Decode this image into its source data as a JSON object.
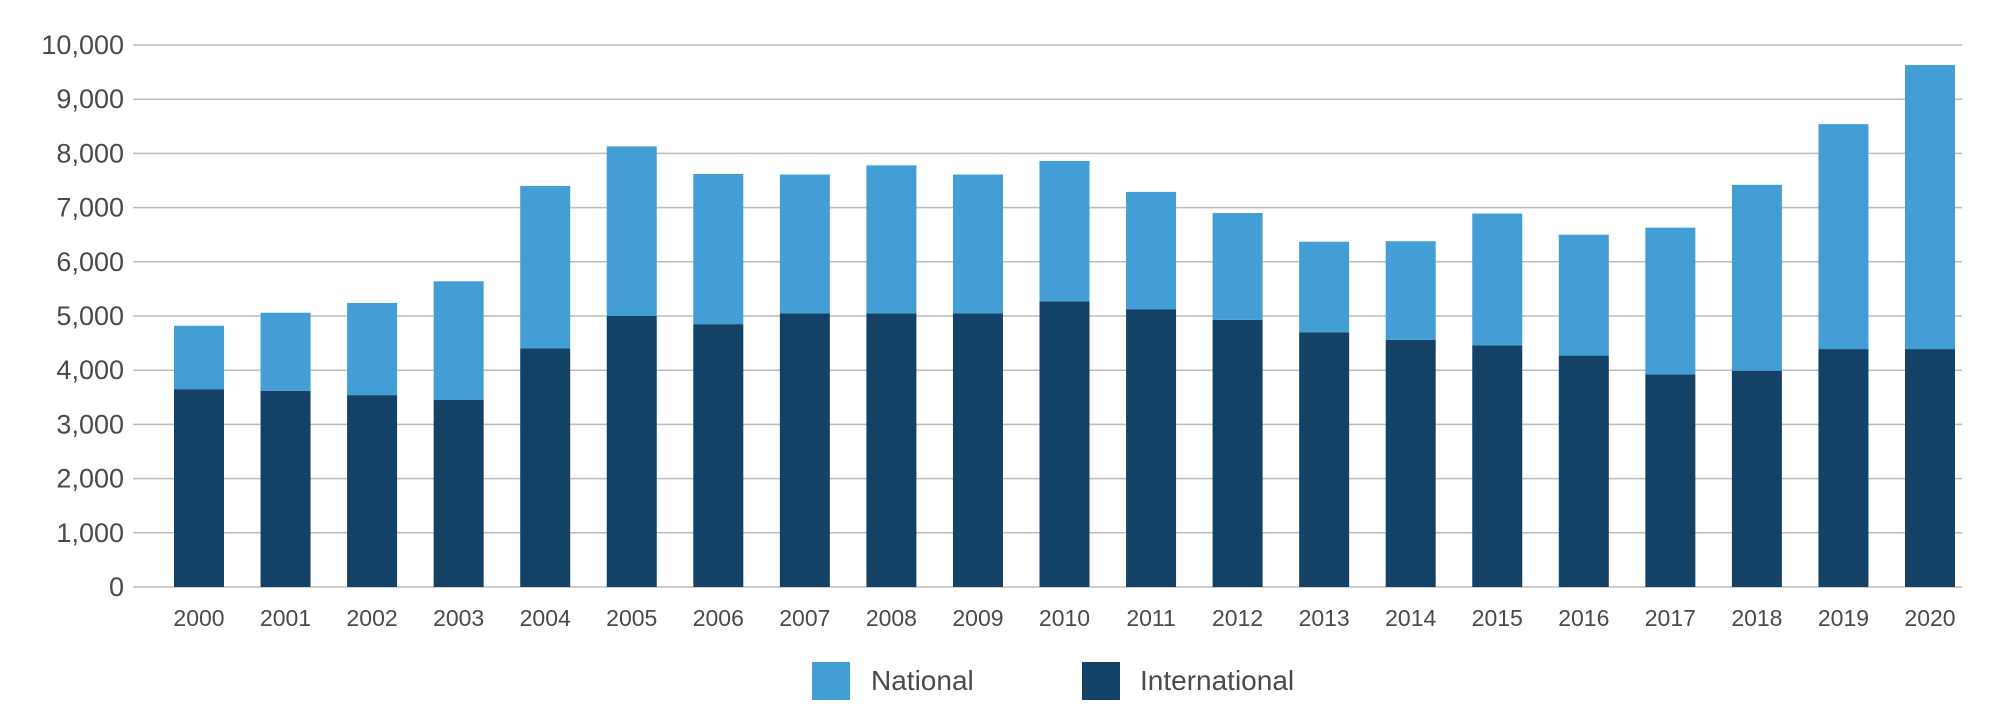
{
  "chart_data": {
    "type": "bar",
    "stacked": true,
    "title": "",
    "xlabel": "",
    "ylabel": "",
    "categories": [
      "2000",
      "2001",
      "2002",
      "2003",
      "2004",
      "2005",
      "2006",
      "2007",
      "2008",
      "2009",
      "2010",
      "2011",
      "2012",
      "2013",
      "2014",
      "2015",
      "2016",
      "2017",
      "2018",
      "2019",
      "2020"
    ],
    "series": [
      {
        "name": "International",
        "color": "#134266",
        "values": [
          3650,
          3620,
          3540,
          3450,
          4400,
          5000,
          4850,
          5050,
          5050,
          5050,
          5270,
          5120,
          4930,
          4700,
          4560,
          4460,
          4270,
          3920,
          3990,
          4390,
          4390
        ]
      },
      {
        "name": "National",
        "color": "#439ed6",
        "values": [
          1170,
          1440,
          1700,
          2190,
          3000,
          3130,
          2770,
          2560,
          2730,
          2560,
          2590,
          2170,
          1970,
          1670,
          1820,
          2430,
          2230,
          2710,
          3430,
          4150,
          5240
        ]
      }
    ],
    "ylim": [
      0,
      10000
    ],
    "yticks": [
      {
        "value": 0,
        "label": "0"
      },
      {
        "value": 1000,
        "label": "1,000"
      },
      {
        "value": 2000,
        "label": "2,000"
      },
      {
        "value": 3000,
        "label": "3,000"
      },
      {
        "value": 4000,
        "label": "4,000"
      },
      {
        "value": 5000,
        "label": "5,000"
      },
      {
        "value": 6000,
        "label": "6,000"
      },
      {
        "value": 7000,
        "label": "7,000"
      },
      {
        "value": 8000,
        "label": "8,000"
      },
      {
        "value": 9000,
        "label": "9,000"
      },
      {
        "value": 10000,
        "label": "10,000"
      }
    ],
    "grid": true,
    "gridline_color": "#bdbdbd",
    "legend": {
      "placement": "bottom-center",
      "entries": [
        {
          "label": "National",
          "color": "#439ed6"
        },
        {
          "label": "International",
          "color": "#134266"
        }
      ]
    }
  }
}
